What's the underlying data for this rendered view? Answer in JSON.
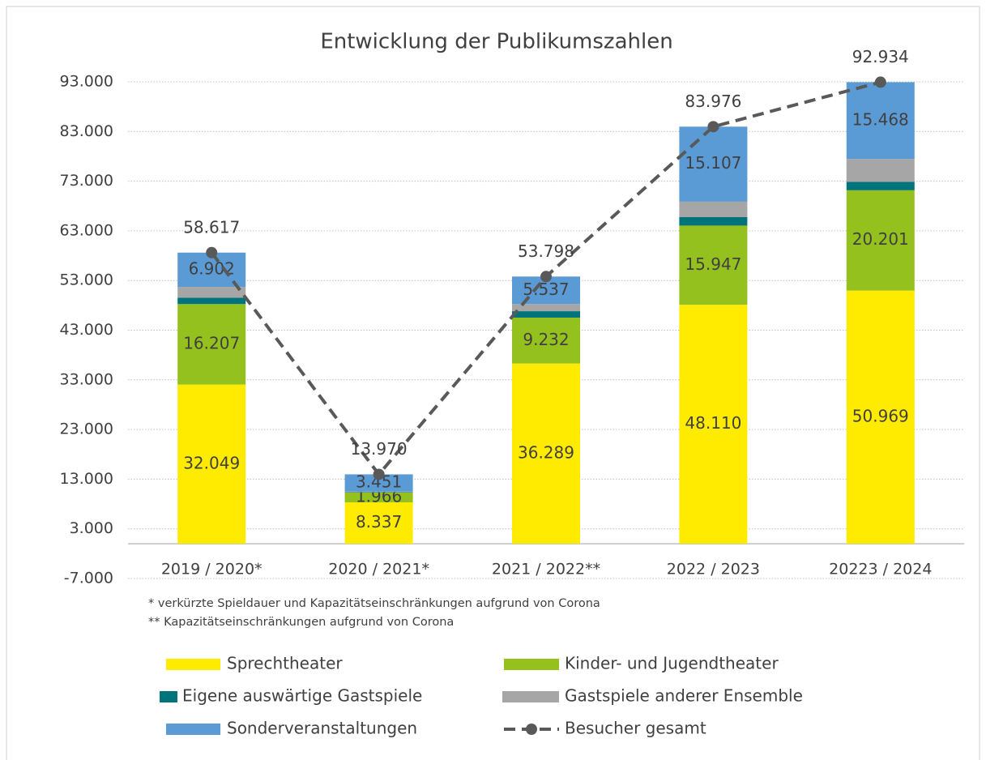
{
  "chart_data": {
    "type": "bar",
    "stacked": true,
    "title": "Entwicklung der Publikumszahlen",
    "categories": [
      "2019 / 2020*",
      "2020 / 2021*",
      "2021 / 2022**",
      "2022 / 2023",
      "20223 / 2024"
    ],
    "series": [
      {
        "name": "Sprechtheater",
        "color": "#ffeb00",
        "values": [
          32049,
          8337,
          36289,
          48110,
          50969
        ],
        "value_labels": [
          "32.049",
          "8.337",
          "36.289",
          "48.110",
          "50.969"
        ]
      },
      {
        "name": "Kinder- und Jugendtheater",
        "color": "#95c11f",
        "values": [
          16207,
          1966,
          9232,
          15947,
          20201
        ],
        "value_labels": [
          "16.207",
          "1.966",
          "9.232",
          "15.947",
          "20.201"
        ]
      },
      {
        "name": "Eigene auswärtige Gastspiele",
        "color": "#00747a",
        "values": [
          1300,
          100,
          1300,
          1700,
          1700
        ]
      },
      {
        "name": "Gastspiele anderer Ensemble",
        "color": "#a6a6a6",
        "values": [
          2159,
          116,
          1440,
          3112,
          4596
        ]
      },
      {
        "name": "Sonderveranstaltungen",
        "color": "#5b9bd5",
        "values": [
          6902,
          3451,
          5537,
          15107,
          15468
        ],
        "value_labels": [
          "6.902",
          "3.451",
          "5.537",
          "15.107",
          "15.468"
        ]
      },
      {
        "name": "Besucher gesamt",
        "type": "line",
        "color": "#595959",
        "values": [
          58617,
          13970,
          53798,
          83976,
          92934
        ],
        "value_labels": [
          "58.617",
          "13.970",
          "53.798",
          "83.976",
          "92.934"
        ]
      }
    ],
    "ylim": [
      -7000,
      93000
    ],
    "yticks": [
      {
        "value": -7000,
        "label": "-7.000"
      },
      {
        "value": 3000,
        "label": "3.000"
      },
      {
        "value": 13000,
        "label": "13.000"
      },
      {
        "value": 23000,
        "label": "23.000"
      },
      {
        "value": 33000,
        "label": "33.000"
      },
      {
        "value": 43000,
        "label": "43.000"
      },
      {
        "value": 53000,
        "label": "53.000"
      },
      {
        "value": 63000,
        "label": "63.000"
      },
      {
        "value": 73000,
        "label": "73.000"
      },
      {
        "value": 83000,
        "label": "83.000"
      },
      {
        "value": 93000,
        "label": "93.000"
      }
    ],
    "grid": true,
    "legend": "bottom",
    "annotations": [
      "* verkürzte Spieldauer und Kapazitätseinschränkungen aufgrund von Corona",
      "** Kapazitätseinschränkungen aufgrund von Corona"
    ]
  }
}
